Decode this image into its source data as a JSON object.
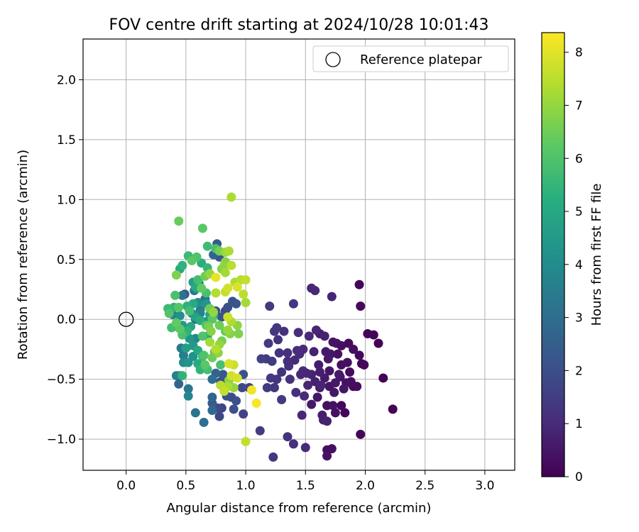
{
  "chart_data": {
    "type": "scatter",
    "title": "FOV centre drift starting at 2024/10/28 10:01:43",
    "xlabel": "Angular distance from reference (arcmin)",
    "ylabel": "Rotation from reference (arcmin)",
    "xlim": [
      -0.36,
      3.25
    ],
    "ylim": [
      -1.26,
      2.34
    ],
    "xticks": [
      0.0,
      0.5,
      1.0,
      1.5,
      2.0,
      2.5,
      3.0
    ],
    "xtick_labels": [
      "0.0",
      "0.5",
      "1.0",
      "1.5",
      "2.0",
      "2.5",
      "3.0"
    ],
    "yticks": [
      -1.0,
      -0.5,
      0.0,
      0.5,
      1.0,
      1.5,
      2.0
    ],
    "ytick_labels": [
      "−1.0",
      "−0.5",
      "0.0",
      "0.5",
      "1.0",
      "1.5",
      "2.0"
    ],
    "grid": true,
    "legend": {
      "position": "top-right",
      "entries": [
        "Reference platepar"
      ]
    },
    "reference_point": {
      "x": 0.0,
      "y": 0.0,
      "marker": "hollow-circle"
    },
    "colorbar": {
      "label": "Hours from first FF file",
      "colormap": "viridis",
      "range": [
        0,
        8.37
      ],
      "ticks": [
        0,
        1,
        2,
        3,
        4,
        5,
        6,
        7,
        8
      ],
      "tick_labels": [
        "0",
        "1",
        "2",
        "3",
        "4",
        "5",
        "6",
        "7",
        "8"
      ]
    },
    "points": [
      [
        1.95,
        0.29,
        0.1
      ],
      [
        1.96,
        0.11,
        0.2
      ],
      [
        2.02,
        -0.12,
        0.1
      ],
      [
        2.07,
        -0.13,
        0.1
      ],
      [
        2.11,
        -0.2,
        0.05
      ],
      [
        2.23,
        -0.75,
        0.05
      ],
      [
        2.15,
        -0.49,
        0.05
      ],
      [
        1.97,
        -0.37,
        0.1
      ],
      [
        1.99,
        -0.38,
        0.15
      ],
      [
        1.95,
        -0.3,
        0.2
      ],
      [
        1.86,
        -0.2,
        0.25
      ],
      [
        1.8,
        -0.22,
        0.3
      ],
      [
        1.76,
        -0.2,
        0.4
      ],
      [
        1.73,
        -0.19,
        0.45
      ],
      [
        1.71,
        -0.29,
        0.5
      ],
      [
        1.67,
        -0.27,
        0.6
      ],
      [
        1.62,
        -0.12,
        0.7
      ],
      [
        1.66,
        -0.14,
        0.8
      ],
      [
        1.55,
        0.26,
        0.9
      ],
      [
        1.58,
        0.24,
        0.95
      ],
      [
        1.72,
        0.19,
        0.85
      ],
      [
        1.4,
        0.13,
        1.3
      ],
      [
        1.2,
        0.11,
        1.4
      ],
      [
        1.93,
        -0.56,
        0.25
      ],
      [
        1.88,
        -0.52,
        0.3
      ],
      [
        1.84,
        -0.53,
        0.4
      ],
      [
        1.82,
        -0.58,
        0.5
      ],
      [
        1.78,
        -0.46,
        0.6
      ],
      [
        1.75,
        -0.53,
        0.55
      ],
      [
        1.7,
        -0.56,
        0.45
      ],
      [
        1.66,
        -0.49,
        0.6
      ],
      [
        1.62,
        -0.44,
        0.7
      ],
      [
        1.55,
        -0.46,
        0.8
      ],
      [
        1.51,
        -0.45,
        0.9
      ],
      [
        1.48,
        -0.43,
        1.0
      ],
      [
        1.58,
        -0.52,
        0.75
      ],
      [
        1.63,
        -0.55,
        0.85
      ],
      [
        1.68,
        -0.72,
        0.3
      ],
      [
        1.75,
        -0.78,
        0.35
      ],
      [
        1.8,
        -0.72,
        0.2
      ],
      [
        1.73,
        -0.72,
        0.4
      ],
      [
        1.6,
        -0.65,
        0.5
      ],
      [
        1.55,
        -0.71,
        0.6
      ],
      [
        1.64,
        -0.8,
        0.7
      ],
      [
        1.68,
        -0.85,
        0.8
      ],
      [
        1.65,
        -0.84,
        0.75
      ],
      [
        1.47,
        -0.8,
        0.9
      ],
      [
        1.96,
        -0.96,
        0.1
      ],
      [
        1.68,
        -1.09,
        0.3
      ],
      [
        1.72,
        -1.08,
        0.35
      ],
      [
        1.68,
        -1.14,
        0.4
      ],
      [
        1.5,
        -1.07,
        1.0
      ],
      [
        1.4,
        -1.04,
        1.1
      ],
      [
        1.35,
        -0.98,
        1.2
      ],
      [
        1.23,
        -1.15,
        1.3
      ],
      [
        1.12,
        -0.93,
        1.5
      ],
      [
        1.3,
        -0.67,
        1.4
      ],
      [
        1.24,
        -0.57,
        1.3
      ],
      [
        1.18,
        -0.57,
        1.45
      ],
      [
        1.21,
        -0.49,
        1.35
      ],
      [
        1.26,
        -0.5,
        1.25
      ],
      [
        1.3,
        -0.44,
        1.2
      ],
      [
        1.36,
        -0.39,
        1.1
      ],
      [
        1.41,
        -0.34,
        1.0
      ],
      [
        1.45,
        -0.29,
        1.05
      ],
      [
        1.48,
        -0.25,
        1.0
      ],
      [
        1.35,
        -0.28,
        1.1
      ],
      [
        1.27,
        -0.17,
        1.2
      ],
      [
        1.32,
        -0.1,
        1.15
      ],
      [
        1.24,
        -0.1,
        1.3
      ],
      [
        1.19,
        -0.2,
        1.4
      ],
      [
        1.17,
        -0.33,
        1.5
      ],
      [
        1.13,
        -0.33,
        1.6
      ],
      [
        1.22,
        -0.35,
        1.4
      ],
      [
        1.26,
        -0.07,
        1.3
      ],
      [
        1.44,
        -0.11,
        1.05
      ],
      [
        1.53,
        -0.14,
        0.95
      ],
      [
        1.59,
        -0.09,
        0.9
      ],
      [
        1.61,
        -0.38,
        0.65
      ],
      [
        1.52,
        -0.55,
        0.9
      ],
      [
        1.49,
        -0.64,
        1.0
      ],
      [
        1.42,
        -0.61,
        1.1
      ],
      [
        1.37,
        -0.5,
        1.15
      ],
      [
        1.85,
        -0.36,
        0.35
      ],
      [
        1.9,
        -0.25,
        0.3
      ],
      [
        1.9,
        -0.56,
        0.2
      ],
      [
        1.87,
        -0.44,
        0.28
      ],
      [
        1.8,
        -0.38,
        0.33
      ],
      [
        1.77,
        -0.29,
        0.38
      ],
      [
        1.7,
        -0.43,
        0.48
      ],
      [
        1.83,
        -0.78,
        0.15
      ],
      [
        1.79,
        -0.48,
        0.42
      ],
      [
        1.74,
        -0.61,
        0.52
      ],
      [
        1.69,
        -0.33,
        0.58
      ],
      [
        1.62,
        -0.57,
        0.68
      ],
      [
        1.57,
        -0.27,
        0.78
      ],
      [
        1.35,
        -0.35,
        1.12
      ],
      [
        1.43,
        -0.26,
        1.08
      ],
      [
        1.28,
        -0.28,
        1.22
      ],
      [
        1.46,
        -0.46,
        0.95
      ],
      [
        0.64,
        0.76,
        6.2
      ],
      [
        0.44,
        0.82,
        6.4
      ],
      [
        0.88,
        1.02,
        7.3
      ],
      [
        0.76,
        0.63,
        2.4
      ],
      [
        0.68,
        0.61,
        5.7
      ],
      [
        0.59,
        0.52,
        6.0
      ],
      [
        0.52,
        0.53,
        5.6
      ],
      [
        0.47,
        0.45,
        5.4
      ],
      [
        0.45,
        0.42,
        5.0
      ],
      [
        0.42,
        0.37,
        6.7
      ],
      [
        0.55,
        0.49,
        6.2
      ],
      [
        0.63,
        0.47,
        5.2
      ],
      [
        0.68,
        0.43,
        5.5
      ],
      [
        0.75,
        0.59,
        5.9
      ],
      [
        0.78,
        0.57,
        6.6
      ],
      [
        0.83,
        0.56,
        7.1
      ],
      [
        0.86,
        0.57,
        7.3
      ],
      [
        0.82,
        0.45,
        6.9
      ],
      [
        0.88,
        0.45,
        7.5
      ],
      [
        0.83,
        0.39,
        7.2
      ],
      [
        0.8,
        0.42,
        6.8
      ],
      [
        0.75,
        0.35,
        8.1
      ],
      [
        0.7,
        0.38,
        7.0
      ],
      [
        0.66,
        0.36,
        6.5
      ],
      [
        0.6,
        0.33,
        5.8
      ],
      [
        0.56,
        0.31,
        4.6
      ],
      [
        0.58,
        0.27,
        5.1
      ],
      [
        0.63,
        0.26,
        6.3
      ],
      [
        0.67,
        0.22,
        5.9
      ],
      [
        0.75,
        0.22,
        7.4
      ],
      [
        0.85,
        0.26,
        7.8
      ],
      [
        0.91,
        0.31,
        7.3
      ],
      [
        0.96,
        0.33,
        7.4
      ],
      [
        1.0,
        0.33,
        7.6
      ],
      [
        0.93,
        0.27,
        7.9
      ],
      [
        0.98,
        0.21,
        7.5
      ],
      [
        0.83,
        0.23,
        7.6
      ],
      [
        1.0,
        0.14,
        7.2
      ],
      [
        0.92,
        0.13,
        2.2
      ],
      [
        0.85,
        0.1,
        2.0
      ],
      [
        0.83,
        0.07,
        1.8
      ],
      [
        0.75,
        0.07,
        2.2
      ],
      [
        0.8,
        0.02,
        2.1
      ],
      [
        0.85,
        0.02,
        7.7
      ],
      [
        0.88,
        -0.02,
        7.3
      ],
      [
        0.93,
        -0.05,
        6.9
      ],
      [
        0.78,
        -0.05,
        6.5
      ],
      [
        0.71,
        -0.1,
        6.8
      ],
      [
        0.67,
        -0.05,
        6.1
      ],
      [
        0.62,
        -0.01,
        5.2
      ],
      [
        0.58,
        0.02,
        4.8
      ],
      [
        0.54,
        -0.06,
        5.0
      ],
      [
        0.51,
        -0.1,
        5.4
      ],
      [
        0.47,
        -0.13,
        5.9
      ],
      [
        0.45,
        -0.08,
        6.2
      ],
      [
        0.42,
        -0.03,
        6.3
      ],
      [
        0.38,
        -0.07,
        5.8
      ],
      [
        0.35,
        0.09,
        5.6
      ],
      [
        0.36,
        0.05,
        6.0
      ],
      [
        0.4,
        0.1,
        5.5
      ],
      [
        0.41,
        0.2,
        5.9
      ],
      [
        0.47,
        0.2,
        3.2
      ],
      [
        0.44,
        0.1,
        6.1
      ],
      [
        0.51,
        0.11,
        5.3
      ],
      [
        0.53,
        0.07,
        5.8
      ],
      [
        0.56,
        0.13,
        5.1
      ],
      [
        0.6,
        0.14,
        4.1
      ],
      [
        0.62,
        0.08,
        3.5
      ],
      [
        0.66,
        0.17,
        3.0
      ],
      [
        0.7,
        0.09,
        6.5
      ],
      [
        0.73,
        0.06,
        7.0
      ],
      [
        0.72,
        0.0,
        6.2
      ],
      [
        0.69,
        -0.06,
        6.6
      ],
      [
        0.64,
        -0.14,
        6.0
      ],
      [
        0.58,
        -0.16,
        3.9
      ],
      [
        0.56,
        -0.22,
        4.5
      ],
      [
        0.6,
        -0.26,
        5.0
      ],
      [
        0.64,
        -0.31,
        5.6
      ],
      [
        0.66,
        -0.38,
        6.2
      ],
      [
        0.62,
        -0.42,
        5.4
      ],
      [
        0.68,
        -0.42,
        5.8
      ],
      [
        0.72,
        -0.32,
        6.5
      ],
      [
        0.75,
        -0.25,
        7.4
      ],
      [
        0.78,
        -0.21,
        7.0
      ],
      [
        0.8,
        -0.18,
        6.6
      ],
      [
        0.83,
        -0.1,
        6.4
      ],
      [
        0.87,
        -0.12,
        6.8
      ],
      [
        0.79,
        -0.38,
        5.9
      ],
      [
        0.81,
        -0.46,
        2.3
      ],
      [
        0.75,
        -0.45,
        2.6
      ],
      [
        0.72,
        -0.5,
        3.0
      ],
      [
        0.79,
        -0.52,
        2.1
      ],
      [
        0.86,
        -0.51,
        6.9
      ],
      [
        0.88,
        -0.47,
        7.8
      ],
      [
        0.86,
        -0.37,
        7.9
      ],
      [
        0.9,
        -0.38,
        7.7
      ],
      [
        0.93,
        -0.49,
        7.9
      ],
      [
        0.82,
        -0.6,
        7.6
      ],
      [
        0.85,
        -0.56,
        7.3
      ],
      [
        0.9,
        -0.57,
        7.0
      ],
      [
        0.88,
        -0.65,
        1.9
      ],
      [
        0.84,
        -0.64,
        2.0
      ],
      [
        0.8,
        -0.74,
        1.7
      ],
      [
        0.76,
        -0.74,
        1.9
      ],
      [
        0.72,
        -0.76,
        2.8
      ],
      [
        0.72,
        -0.7,
        2.4
      ],
      [
        0.78,
        -0.81,
        1.8
      ],
      [
        0.98,
        -0.79,
        1.7
      ],
      [
        0.92,
        -0.68,
        2.0
      ],
      [
        0.97,
        -0.57,
        1.8
      ],
      [
        1.03,
        -0.57,
        1.6
      ],
      [
        1.05,
        -0.59,
        8.2
      ],
      [
        1.09,
        -0.7,
        8.3
      ],
      [
        1.0,
        -1.02,
        7.6
      ],
      [
        0.98,
        -0.46,
        2.1
      ],
      [
        0.9,
        -0.75,
        2.0
      ],
      [
        0.72,
        -0.65,
        2.7
      ],
      [
        0.65,
        -0.86,
        3.0
      ],
      [
        0.58,
        -0.78,
        3.2
      ],
      [
        0.52,
        -0.64,
        3.8
      ],
      [
        0.52,
        -0.58,
        3.3
      ],
      [
        0.44,
        -0.54,
        2.7
      ],
      [
        0.42,
        -0.47,
        3.6
      ],
      [
        0.45,
        -0.47,
        3.1
      ],
      [
        0.47,
        -0.47,
        5.4
      ],
      [
        0.52,
        -0.36,
        4.3
      ],
      [
        0.48,
        -0.36,
        4.0
      ],
      [
        0.46,
        -0.24,
        3.4
      ],
      [
        0.5,
        -0.24,
        4.6
      ],
      [
        0.56,
        -0.31,
        4.2
      ],
      [
        0.6,
        -0.37,
        5.1
      ],
      [
        0.65,
        -0.3,
        6.0
      ],
      [
        0.48,
        -0.3,
        3.5
      ],
      [
        0.53,
        -0.16,
        4.4
      ],
      [
        0.45,
        0.03,
        4.2
      ],
      [
        0.39,
        0.04,
        3.6
      ],
      [
        0.42,
        -0.06,
        4.8
      ],
      [
        0.47,
        -0.05,
        4.5
      ],
      [
        0.49,
        0.21,
        2.2
      ],
      [
        0.57,
        0.24,
        3.3
      ],
      [
        0.59,
        0.26,
        4.7
      ],
      [
        0.61,
        0.3,
        3.9
      ],
      [
        0.58,
        0.0,
        3.1
      ],
      [
        0.62,
        0.05,
        3.7
      ],
      [
        0.66,
        -0.02,
        4.3
      ],
      [
        0.7,
        0.04,
        4.9
      ],
      [
        0.73,
        0.03,
        5.2
      ],
      [
        0.73,
        0.54,
        2.7
      ],
      [
        0.78,
        0.52,
        2.2
      ],
      [
        0.83,
        0.48,
        6.8
      ],
      [
        0.94,
        -0.12,
        6.7
      ],
      [
        0.89,
        0.15,
        2.1
      ],
      [
        0.68,
        -0.14,
        4.9
      ],
      [
        0.7,
        -0.19,
        7.2
      ],
      [
        0.74,
        -0.27,
        6.3
      ],
      [
        0.79,
        -0.55,
        7.5
      ],
      [
        0.85,
        -0.09,
        7.0
      ],
      [
        0.77,
        -0.28,
        6.9
      ],
      [
        0.67,
        0.13,
        4.4
      ],
      [
        0.55,
        0.05,
        4.0
      ]
    ]
  }
}
